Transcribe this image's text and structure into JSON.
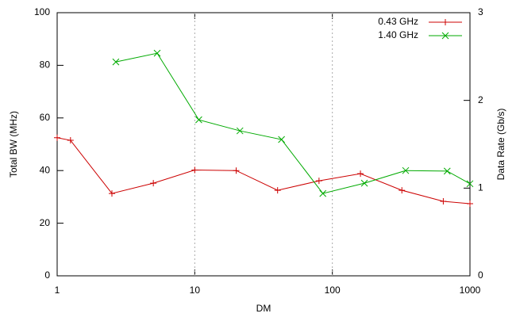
{
  "chart_data": {
    "type": "line",
    "x_label": "DM",
    "y_label": "Total BW (MHz)",
    "y2_label": "Data Rate (Gb/s)",
    "xscale": "log",
    "grid": "x",
    "xlim": [
      1,
      1000
    ],
    "xticks": [
      1,
      10,
      100,
      1000
    ],
    "ylim": [
      0,
      100
    ],
    "yticks": [
      0,
      20,
      40,
      60,
      80,
      100
    ],
    "y2lim": [
      0,
      3
    ],
    "y2ticks": [
      0,
      1,
      2,
      3
    ],
    "legend": "top-right",
    "series": [
      {
        "name": "0.43 GHz",
        "color": "#cc0000",
        "marker": "plus",
        "x": [
          1,
          1.25,
          2.5,
          5,
          10,
          20,
          40,
          80,
          160,
          320,
          640,
          1000
        ],
        "values": [
          52.5,
          51.5,
          31.3,
          35.2,
          40.2,
          40,
          32.5,
          36.1,
          38.8,
          32.5,
          28.3,
          27.4
        ]
      },
      {
        "name": "1.40 GHz",
        "color": "#00aa00",
        "marker": "cross",
        "x": [
          2.67,
          5.33,
          10.7,
          21.3,
          42.7,
          85.3,
          171,
          341,
          683,
          1000
        ],
        "values": [
          81.3,
          84.6,
          59.3,
          55.1,
          51.8,
          31.3,
          35.2,
          40,
          39.8,
          35
        ]
      }
    ]
  }
}
